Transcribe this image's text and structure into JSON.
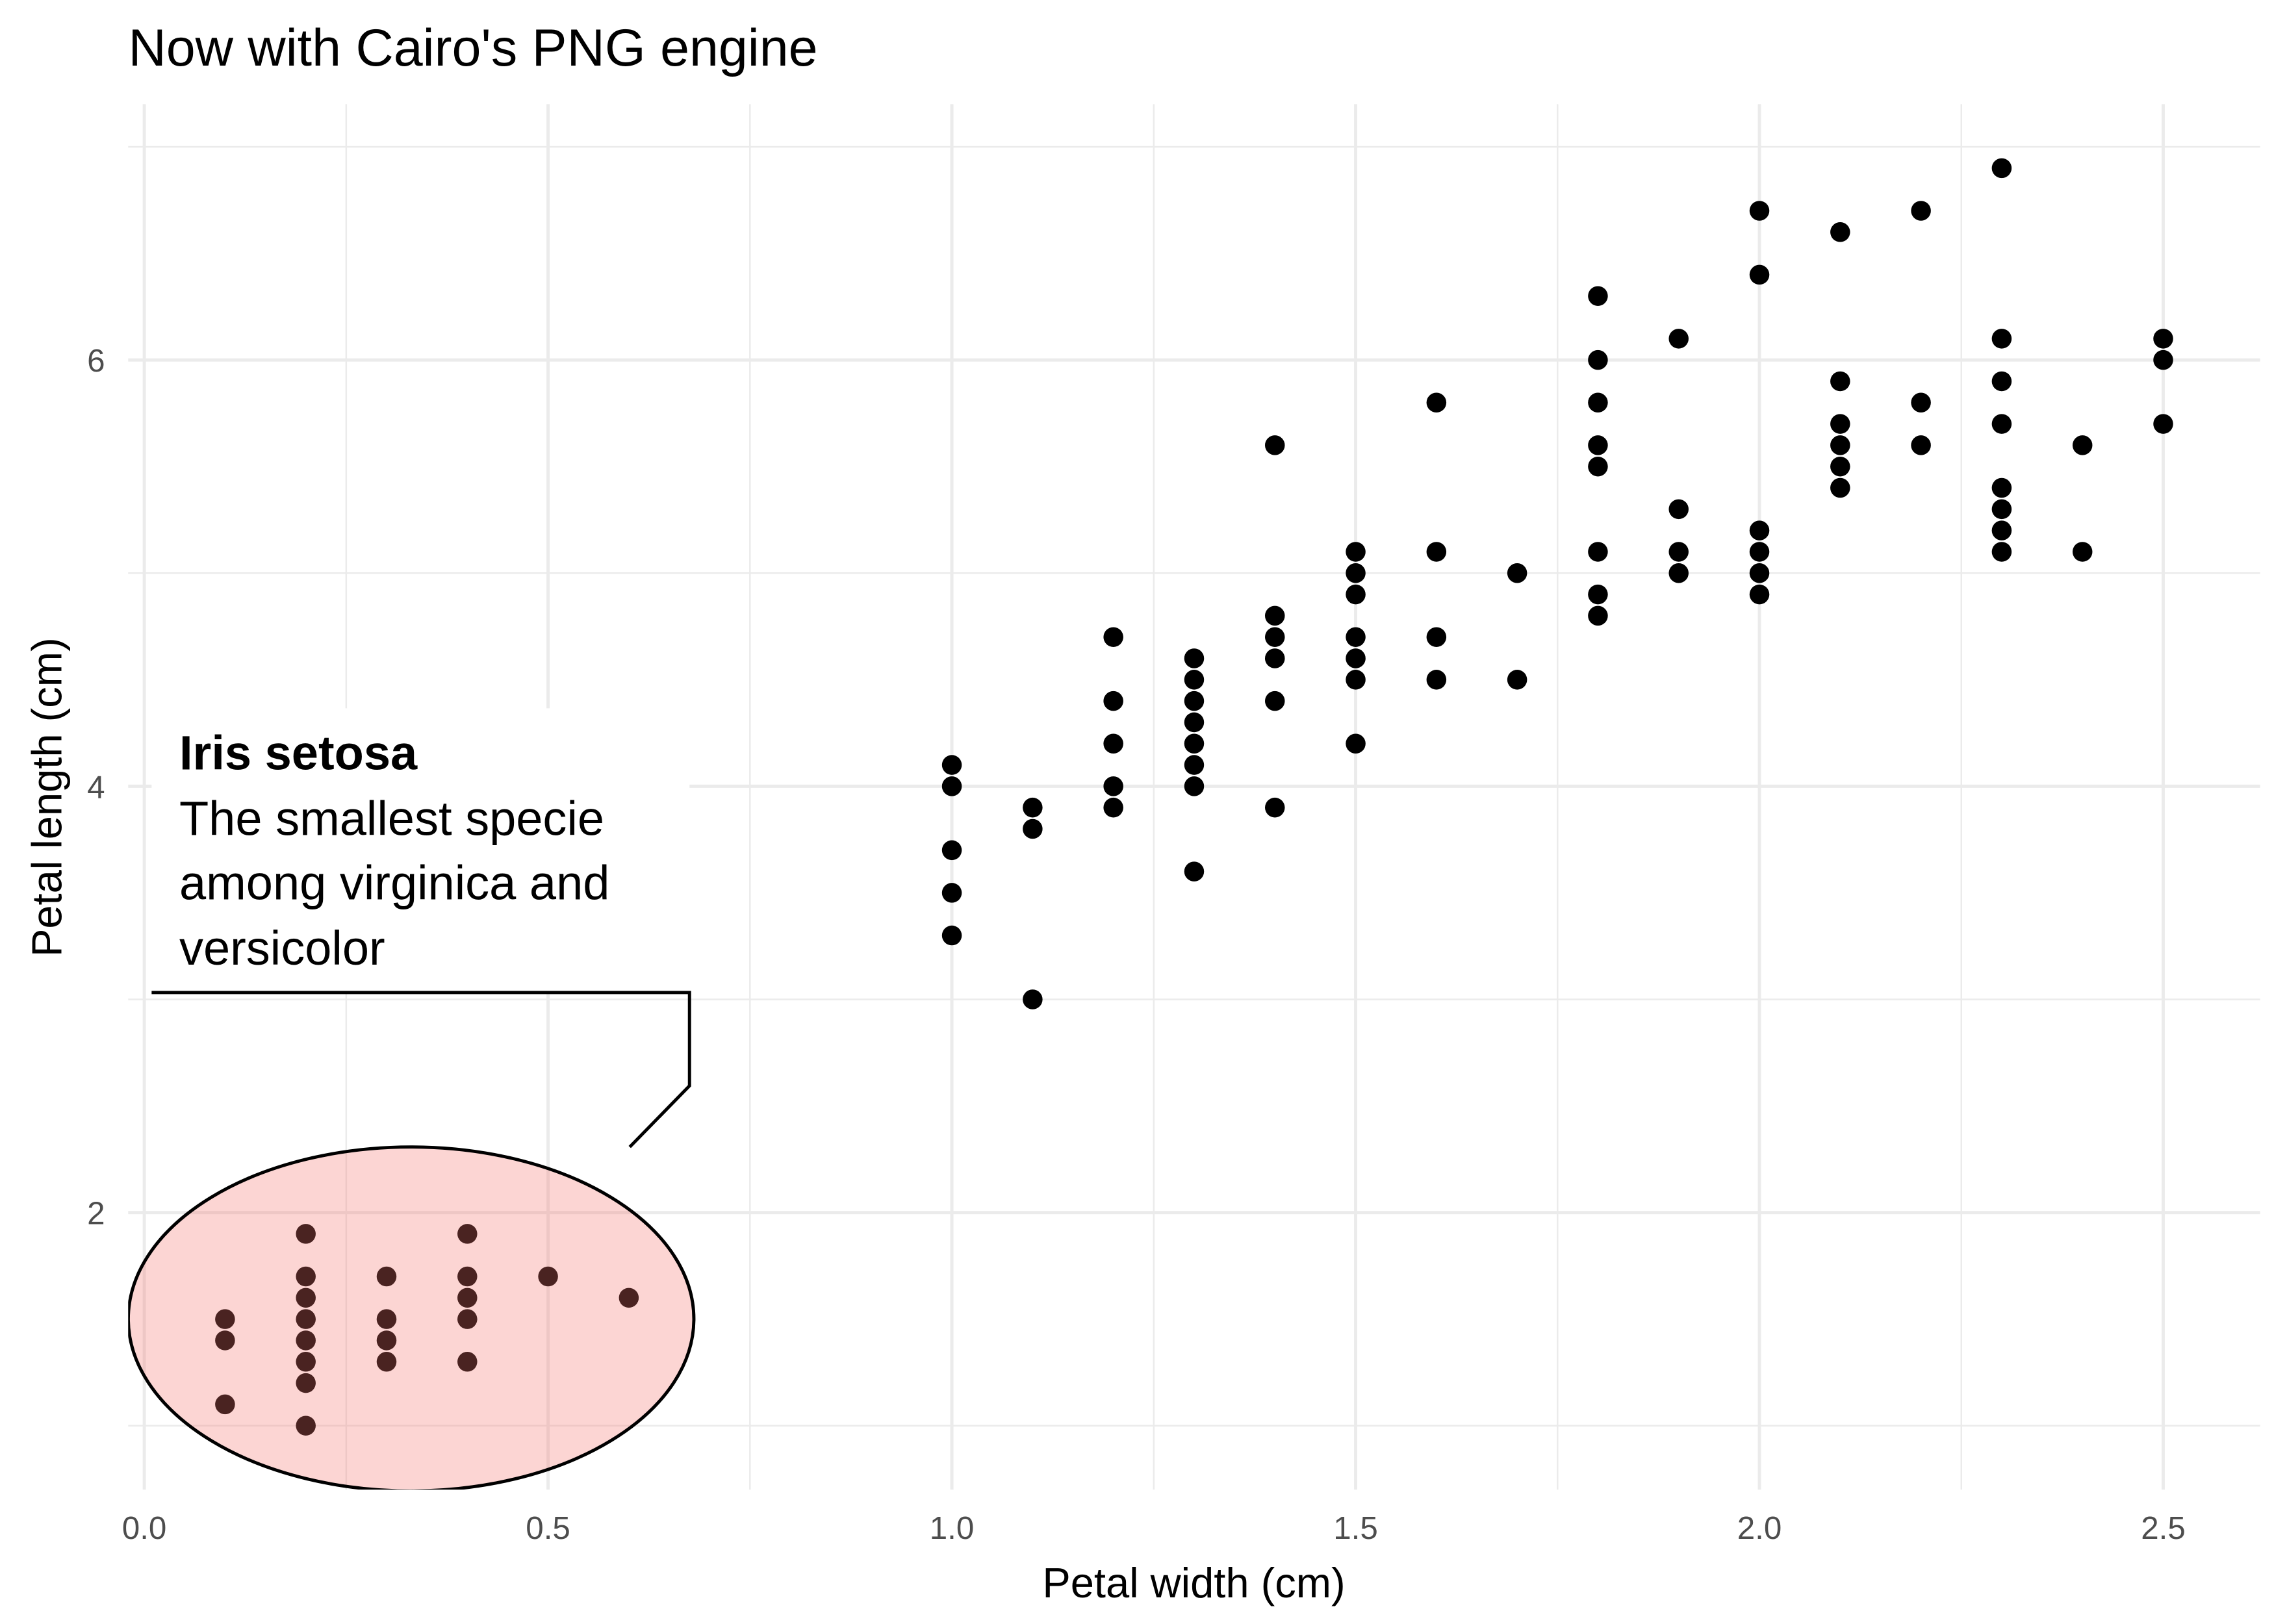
{
  "chart_data": {
    "type": "scatter",
    "title": "Now with Cairo's PNG engine",
    "xlabel": "Petal width (cm)",
    "ylabel": "Petal length (cm)",
    "color": "#000000",
    "grid": true,
    "xlim": [
      -0.02,
      2.62
    ],
    "ylim": [
      0.7,
      7.2
    ],
    "xticks": [
      {
        "value": 0,
        "label": "0.0"
      },
      0.5,
      {
        "value": 1,
        "label": "1.0"
      },
      1.5,
      {
        "value": 2,
        "label": "2.0"
      },
      2.5
    ],
    "yticks": [
      2,
      4,
      6
    ],
    "x_minor_ticks": [
      0.25,
      0.75,
      1.25,
      1.75,
      2.25
    ],
    "y_minor_ticks": [
      1,
      3,
      5,
      7
    ],
    "x": [
      0.1,
      0.1,
      0.1,
      0.2,
      0.2,
      0.2,
      0.2,
      0.2,
      0.2,
      0.2,
      0.2,
      0.3,
      0.3,
      0.3,
      0.3,
      0.4,
      0.4,
      0.4,
      0.4,
      0.4,
      0.5,
      0.6,
      1.0,
      1.0,
      1.0,
      1.0,
      1.0,
      1.1,
      1.1,
      1.1,
      1.2,
      1.2,
      1.2,
      1.2,
      1.2,
      1.3,
      1.3,
      1.3,
      1.3,
      1.3,
      1.3,
      1.3,
      1.3,
      1.4,
      1.4,
      1.4,
      1.4,
      1.4,
      1.4,
      1.5,
      1.5,
      1.5,
      1.5,
      1.5,
      1.5,
      1.5,
      1.6,
      1.6,
      1.6,
      1.6,
      1.7,
      1.7,
      1.8,
      1.8,
      1.8,
      1.8,
      1.8,
      1.8,
      1.8,
      1.8,
      1.9,
      1.9,
      1.9,
      1.9,
      2.0,
      2.0,
      2.0,
      2.0,
      2.0,
      2.0,
      2.1,
      2.1,
      2.1,
      2.1,
      2.1,
      2.1,
      2.2,
      2.2,
      2.2,
      2.3,
      2.3,
      2.3,
      2.3,
      2.3,
      2.3,
      2.3,
      2.3,
      2.4,
      2.4,
      2.5,
      2.5,
      2.5
    ],
    "y": [
      1.5,
      1.4,
      1.1,
      1.9,
      1.7,
      1.6,
      1.5,
      1.4,
      1.3,
      1.2,
      1.0,
      1.7,
      1.5,
      1.4,
      1.3,
      1.9,
      1.7,
      1.6,
      1.5,
      1.3,
      1.7,
      1.6,
      4.1,
      4.0,
      3.7,
      3.5,
      3.3,
      3.9,
      3.8,
      3.0,
      4.7,
      4.4,
      4.2,
      4.0,
      3.9,
      4.6,
      4.5,
      4.4,
      4.3,
      4.2,
      4.1,
      4.0,
      3.6,
      5.6,
      4.8,
      4.7,
      4.6,
      4.4,
      3.9,
      5.1,
      5.0,
      4.9,
      4.7,
      4.6,
      4.5,
      4.2,
      5.8,
      5.1,
      4.7,
      4.5,
      5.0,
      4.5,
      6.3,
      6.0,
      5.8,
      5.6,
      5.5,
      5.1,
      4.9,
      4.8,
      6.1,
      5.3,
      5.1,
      5.0,
      6.7,
      6.4,
      5.2,
      5.1,
      5.0,
      4.9,
      6.6,
      5.9,
      5.7,
      5.6,
      5.5,
      5.4,
      6.7,
      5.8,
      5.6,
      6.9,
      6.1,
      5.9,
      5.7,
      5.4,
      5.3,
      5.2,
      5.1,
      5.6,
      5.1,
      6.1,
      6.0,
      5.7
    ],
    "annotation": {
      "label": "Iris setosa",
      "text": [
        "The smallest specie",
        "among virginica and",
        "versicolor"
      ]
    }
  }
}
